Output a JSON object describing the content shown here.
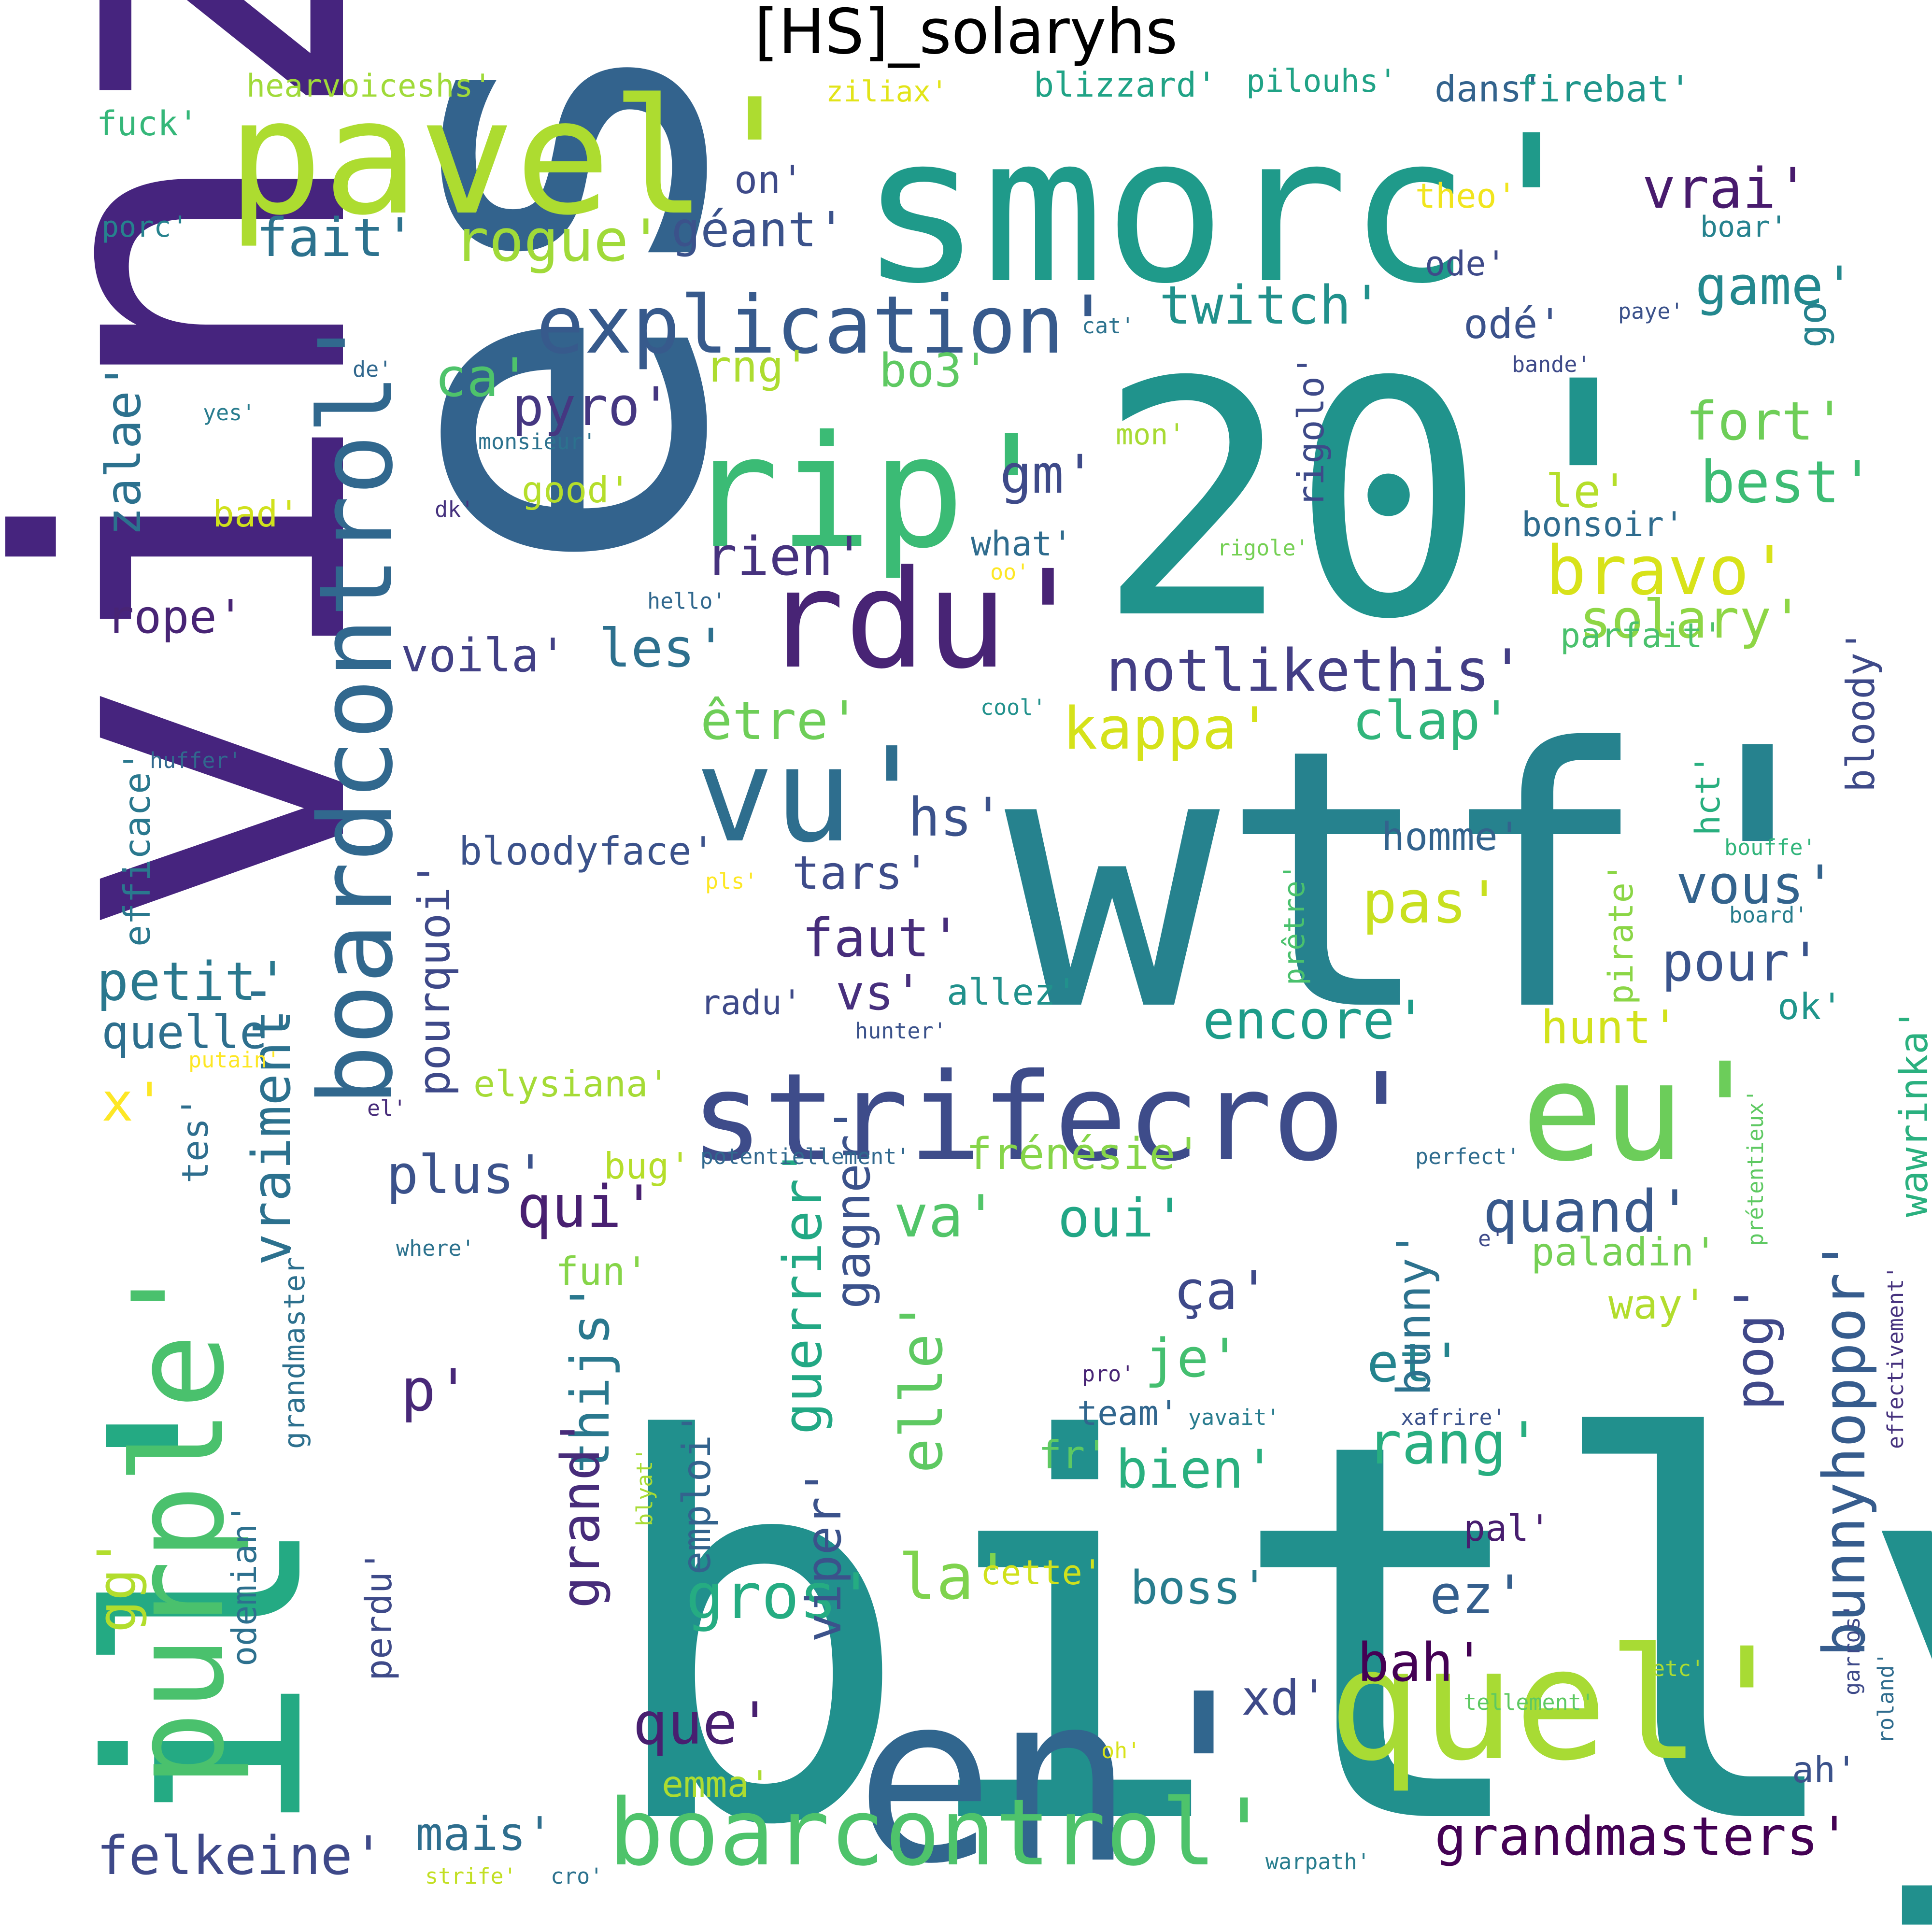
{
  "title": "[HS]_solaryhs",
  "words": [
    {
      "text": "bitly'",
      "color": "#21908d"
    },
    {
      "text": "wtf'",
      "color": "#26828e"
    },
    {
      "text": "smorc'",
      "color": "#1f9a8a"
    },
    {
      "text": "est'",
      "color": "#33638d"
    },
    {
      "text": "20'",
      "color": "#20938c"
    },
    {
      "text": "en'",
      "color": "#31668e"
    },
    {
      "text": "vinz'",
      "color": "#46247e"
    },
    {
      "text": "pavel'",
      "color": "#addc30"
    },
    {
      "text": "il'",
      "color": "#24aa83"
    },
    {
      "text": "quel'",
      "color": "#a8db34"
    },
    {
      "text": "rip'",
      "color": "#3bbb75"
    },
    {
      "text": "purple'",
      "color": "#4ac16d"
    },
    {
      "text": "strifecro'",
      "color": "#3e4c8a"
    },
    {
      "text": "eu'",
      "color": "#6ccd5a"
    },
    {
      "text": "boarcontrol'",
      "color": "#4ec36b"
    },
    {
      "text": "rdu'",
      "color": "#482475"
    },
    {
      "text": "vu'",
      "color": "#2e6e8e"
    },
    {
      "text": "boardcontrol'",
      "color": "#31688e"
    },
    {
      "text": "explication'",
      "color": "#375a8c"
    },
    {
      "text": "notlikethis'",
      "color": "#433e85"
    },
    {
      "text": "bravo'",
      "color": "#d8e219"
    },
    {
      "text": "grandmasters'",
      "color": "#440154"
    },
    {
      "text": "felkeine'",
      "color": "#3e4989"
    },
    {
      "text": "bunnyhoppor'",
      "color": "#365c8d"
    },
    {
      "text": "kappa'",
      "color": "#d5e21a"
    },
    {
      "text": "solary'",
      "color": "#8ed645"
    },
    {
      "text": "fort'",
      "color": "#6ece58"
    },
    {
      "text": "best'",
      "color": "#3dbc74"
    },
    {
      "text": "le'",
      "color": "#b5de2b"
    },
    {
      "text": "game'",
      "color": "#23888e"
    },
    {
      "text": "twitch'",
      "color": "#21918c"
    },
    {
      "text": "vrai'",
      "color": "#481b6d"
    },
    {
      "text": "rogue'",
      "color": "#a0da39"
    },
    {
      "text": "fait'",
      "color": "#2c728e"
    },
    {
      "text": "géant'",
      "color": "#3b528b"
    },
    {
      "text": "pyro'",
      "color": "#453781"
    },
    {
      "text": "ca'",
      "color": "#4ec36b"
    },
    {
      "text": "rng'",
      "color": "#addc30"
    },
    {
      "text": "bo3'",
      "color": "#5ec962"
    },
    {
      "text": "gm'",
      "color": "#3e4a89"
    },
    {
      "text": "rien'",
      "color": "#46327e"
    },
    {
      "text": "les'",
      "color": "#2d708e"
    },
    {
      "text": "voila'",
      "color": "#424086"
    },
    {
      "text": "être'",
      "color": "#6ece58"
    },
    {
      "text": "clap'",
      "color": "#31b57b"
    },
    {
      "text": "pourquoi'",
      "color": "#3e4989"
    },
    {
      "text": "hs'",
      "color": "#3b528b"
    },
    {
      "text": "pas'",
      "color": "#c8e020"
    },
    {
      "text": "vous'",
      "color": "#33638d"
    },
    {
      "text": "faut'",
      "color": "#472d7b"
    },
    {
      "text": "tars'",
      "color": "#3e4c8a"
    },
    {
      "text": "petit'",
      "color": "#2a788e"
    },
    {
      "text": "quelle'",
      "color": "#2e6f8e"
    },
    {
      "text": "pour'",
      "color": "#3a548c"
    },
    {
      "text": "encore'",
      "color": "#1e9c89"
    },
    {
      "text": "vs'",
      "color": "#472f7d"
    },
    {
      "text": "x'",
      "color": "#fde725"
    },
    {
      "text": "plus'",
      "color": "#3b528b"
    },
    {
      "text": "qui'",
      "color": "#482071"
    },
    {
      "text": "va'",
      "color": "#52c569"
    },
    {
      "text": "oui'",
      "color": "#21a685"
    },
    {
      "text": "quand'",
      "color": "#38598c"
    },
    {
      "text": "vraiment'",
      "color": "#2c718e"
    },
    {
      "text": "frénésie'",
      "color": "#86d549"
    },
    {
      "text": "ça'",
      "color": "#3e4989"
    },
    {
      "text": "je'",
      "color": "#44bf70"
    },
    {
      "text": "et'",
      "color": "#25848e"
    },
    {
      "text": "rang'",
      "color": "#28ae80"
    },
    {
      "text": "p'",
      "color": "#482878"
    },
    {
      "text": "bien'",
      "color": "#2ab07f"
    },
    {
      "text": "gros'",
      "color": "#25ac82"
    },
    {
      "text": "la'",
      "color": "#7fd34e"
    },
    {
      "text": "ez'",
      "color": "#355f8d"
    },
    {
      "text": "boss'",
      "color": "#287d8e"
    },
    {
      "text": "guerrier'",
      "color": "#22a884"
    },
    {
      "text": "elle'",
      "color": "#5ec962"
    },
    {
      "text": "thijs'",
      "color": "#2a788e"
    },
    {
      "text": "grand'",
      "color": "#472c7a"
    },
    {
      "text": "gagner'",
      "color": "#3b528b"
    },
    {
      "text": "bunny'",
      "color": "#2c728e"
    },
    {
      "text": "pog'",
      "color": "#3f4889"
    },
    {
      "text": "que'",
      "color": "#481f70"
    },
    {
      "text": "bah'",
      "color": "#440154"
    },
    {
      "text": "xd'",
      "color": "#3e4a89"
    },
    {
      "text": "gg'",
      "color": "#b2dd2d"
    },
    {
      "text": "mais'",
      "color": "#2e6e8e"
    },
    {
      "text": "viper'",
      "color": "#3b528b"
    },
    {
      "text": "zalae'",
      "color": "#2c718e"
    },
    {
      "text": "rope'",
      "color": "#482475"
    },
    {
      "text": "bloodyface'",
      "color": "#3b528b"
    },
    {
      "text": "bloody'",
      "color": "#3e4a89"
    },
    {
      "text": "homme'",
      "color": "#33638d"
    },
    {
      "text": "hunt'",
      "color": "#d2e21b"
    },
    {
      "text": "wawrinka'",
      "color": "#2ab07f"
    },
    {
      "text": "paladin'",
      "color": "#75d054"
    },
    {
      "text": "way'",
      "color": "#b2dd2d"
    },
    {
      "text": "pal'",
      "color": "#481d6f"
    },
    {
      "text": "ah'",
      "color": "#3b528b"
    },
    {
      "text": "emma'",
      "color": "#addc30"
    },
    {
      "text": "tes'",
      "color": "#2e6e8e"
    },
    {
      "text": "efficace'",
      "color": "#2a788e"
    },
    {
      "text": "grandmaster'",
      "color": "#2d708e"
    },
    {
      "text": "odemian'",
      "color": "#2d708e"
    },
    {
      "text": "perdu'",
      "color": "#3e4a89"
    },
    {
      "text": "emploi'",
      "color": "#33638d"
    },
    {
      "text": "fun'",
      "color": "#86d549"
    },
    {
      "text": "bug'",
      "color": "#b5de2b"
    },
    {
      "text": "team'",
      "color": "#31668e"
    },
    {
      "text": "fr'",
      "color": "#5ec962"
    },
    {
      "text": "cette'",
      "color": "#d0e11c"
    },
    {
      "text": "allez'",
      "color": "#21918c"
    },
    {
      "text": "radu'",
      "color": "#3e4a89"
    },
    {
      "text": "elysiana'",
      "color": "#a5db36"
    },
    {
      "text": "hct'",
      "color": "#29af7f"
    },
    {
      "text": "prêtre'",
      "color": "#4ac16d"
    },
    {
      "text": "pirate'",
      "color": "#8bd646"
    },
    {
      "text": "ok'",
      "color": "#1f958b"
    },
    {
      "text": "rigolo'",
      "color": "#3e4a89"
    },
    {
      "text": "bonsoir'",
      "color": "#2f6c8e"
    },
    {
      "text": "what'",
      "color": "#2f6c8e"
    },
    {
      "text": "good'",
      "color": "#b5de2b"
    },
    {
      "text": "bad'",
      "color": "#d0e11c"
    },
    {
      "text": "mon'",
      "color": "#a8db34"
    },
    {
      "text": "go'",
      "color": "#26828e"
    },
    {
      "text": "odé'",
      "color": "#3b528b"
    },
    {
      "text": "ode'",
      "color": "#3e4a89"
    },
    {
      "text": "theo'",
      "color": "#f1e51d"
    },
    {
      "text": "boar'",
      "color": "#26828e"
    },
    {
      "text": "on'",
      "color": "#3e4a89"
    },
    {
      "text": "porc'",
      "color": "#26828e"
    },
    {
      "text": "fuck'",
      "color": "#35b779"
    },
    {
      "text": "hearvoiceshs'",
      "color": "#a0da39"
    },
    {
      "text": "ziliax'",
      "color": "#e2e418"
    },
    {
      "text": "blizzard'",
      "color": "#20a386"
    },
    {
      "text": "pilouhs'",
      "color": "#20a386"
    },
    {
      "text": "dans'",
      "color": "#33638d"
    },
    {
      "text": "firebat'",
      "color": "#1f968b"
    },
    {
      "text": "parfait'",
      "color": "#4ac16d"
    },
    {
      "text": "cat'",
      "color": "#2c728e"
    },
    {
      "text": "paye'",
      "color": "#3b528b"
    },
    {
      "text": "bande'",
      "color": "#3e4a89"
    },
    {
      "text": "de'",
      "color": "#31688e"
    },
    {
      "text": "yes'",
      "color": "#287c8e"
    },
    {
      "text": "monsieur'",
      "color": "#2c728e"
    },
    {
      "text": "dk'",
      "color": "#46327e"
    },
    {
      "text": "rigole'",
      "color": "#75d054"
    },
    {
      "text": "oo'",
      "color": "#fde725"
    },
    {
      "text": "hello'",
      "color": "#31688e"
    },
    {
      "text": "cool'",
      "color": "#21918c"
    },
    {
      "text": "huffer'",
      "color": "#31688e"
    },
    {
      "text": "bouffe'",
      "color": "#31b57b"
    },
    {
      "text": "pls'",
      "color": "#fde725"
    },
    {
      "text": "board'",
      "color": "#287d8e"
    },
    {
      "text": "hunter'",
      "color": "#3b528b"
    },
    {
      "text": "putain'",
      "color": "#fde725"
    },
    {
      "text": "el'",
      "color": "#472c7a"
    },
    {
      "text": "potentiellement'",
      "color": "#31688e"
    },
    {
      "text": "perfect'",
      "color": "#2f6c8e"
    },
    {
      "text": "prétentieux'",
      "color": "#5ec962"
    },
    {
      "text": "where'",
      "color": "#2c728e"
    },
    {
      "text": "e'",
      "color": "#3e4a89"
    },
    {
      "text": "effectivement'",
      "color": "#46327e"
    },
    {
      "text": "pro'",
      "color": "#482475"
    },
    {
      "text": "yavait'",
      "color": "#287c8e"
    },
    {
      "text": "xafrire'",
      "color": "#3b528b"
    },
    {
      "text": "blyat'",
      "color": "#a8db34"
    },
    {
      "text": "garros'",
      "color": "#3e4a89"
    },
    {
      "text": "roland'",
      "color": "#2f6c8e"
    },
    {
      "text": "etc'",
      "color": "#addc30"
    },
    {
      "text": "tellement'",
      "color": "#5ec962"
    },
    {
      "text": "oh'",
      "color": "#d8e219"
    },
    {
      "text": "warpath'",
      "color": "#287d8e"
    },
    {
      "text": "strife'",
      "color": "#c2df23"
    },
    {
      "text": "cro'",
      "color": "#2c728e"
    }
  ]
}
